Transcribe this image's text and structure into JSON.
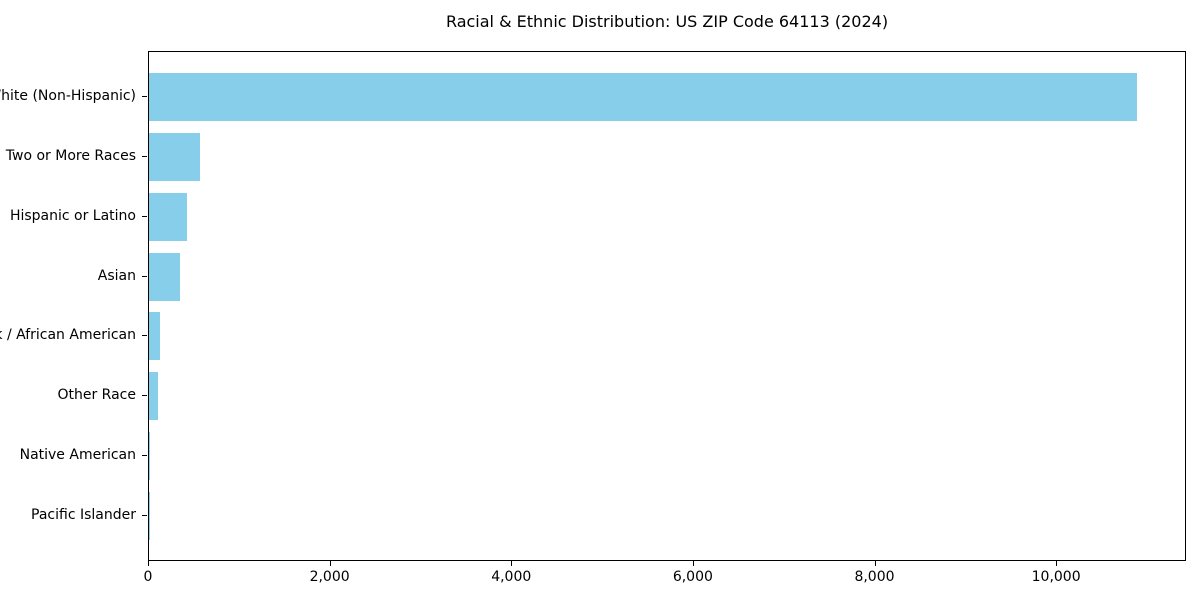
{
  "chart_data": {
    "type": "bar",
    "orientation": "horizontal",
    "title": "Racial & Ethnic Distribution: US ZIP Code 64113 (2024)",
    "categories": [
      "White (Non-Hispanic)",
      "Two or More Races",
      "Hispanic or Latino",
      "Asian",
      "Black / African American",
      "Other Race",
      "Native American",
      "Pacific Islander"
    ],
    "values": [
      10880,
      560,
      420,
      340,
      120,
      100,
      15,
      5
    ],
    "xlabel": "",
    "ylabel": "",
    "xlim": [
      0,
      11430
    ],
    "x_ticks": [
      0,
      2000,
      4000,
      6000,
      8000,
      10000
    ],
    "x_tick_labels": [
      "0",
      "2,000",
      "4,000",
      "6,000",
      "8,000",
      "10,000"
    ],
    "bar_color": "#87CEEB",
    "axis_color": "#000000",
    "grid": false,
    "legend": null
  }
}
